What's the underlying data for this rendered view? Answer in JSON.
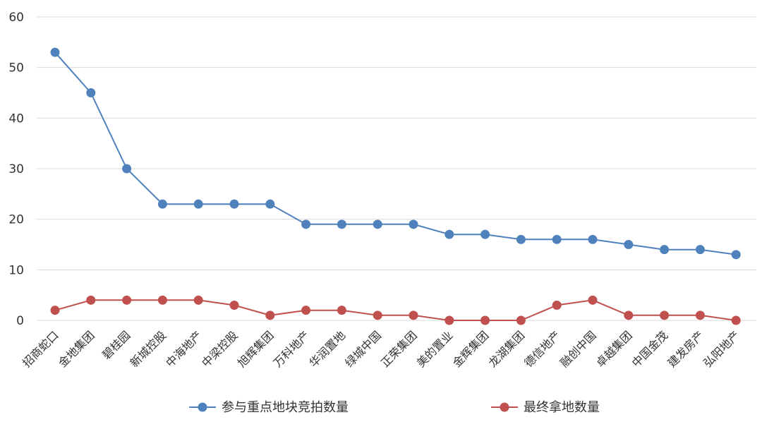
{
  "chart_data": {
    "type": "line",
    "categories": [
      "招商蛇口",
      "金地集团",
      "碧桂园",
      "新城控股",
      "中海地产",
      "中梁控股",
      "旭辉集团",
      "万科地产",
      "华润置地",
      "绿城中国",
      "正荣集团",
      "美的置业",
      "金辉集团",
      "龙湖集团",
      "德信地产",
      "融创中国",
      "卓越集团",
      "中国金茂",
      "建发房产",
      "弘阳地产"
    ],
    "series": [
      {
        "name": "参与重点地块竞拍数量",
        "color": "#4f81bd",
        "values": [
          53,
          45,
          30,
          23,
          23,
          23,
          23,
          19,
          19,
          19,
          19,
          17,
          17,
          16,
          16,
          16,
          15,
          14,
          14,
          13
        ]
      },
      {
        "name": "最终拿地数量",
        "color": "#c0504d",
        "values": [
          2,
          4,
          4,
          4,
          4,
          3,
          1,
          2,
          2,
          1,
          1,
          0,
          0,
          0,
          3,
          4,
          1,
          1,
          1,
          0
        ]
      }
    ],
    "ylim": [
      0,
      60
    ],
    "yticks": [
      0,
      10,
      20,
      30,
      40,
      50,
      60
    ],
    "grid": true,
    "legend": "bottom"
  }
}
